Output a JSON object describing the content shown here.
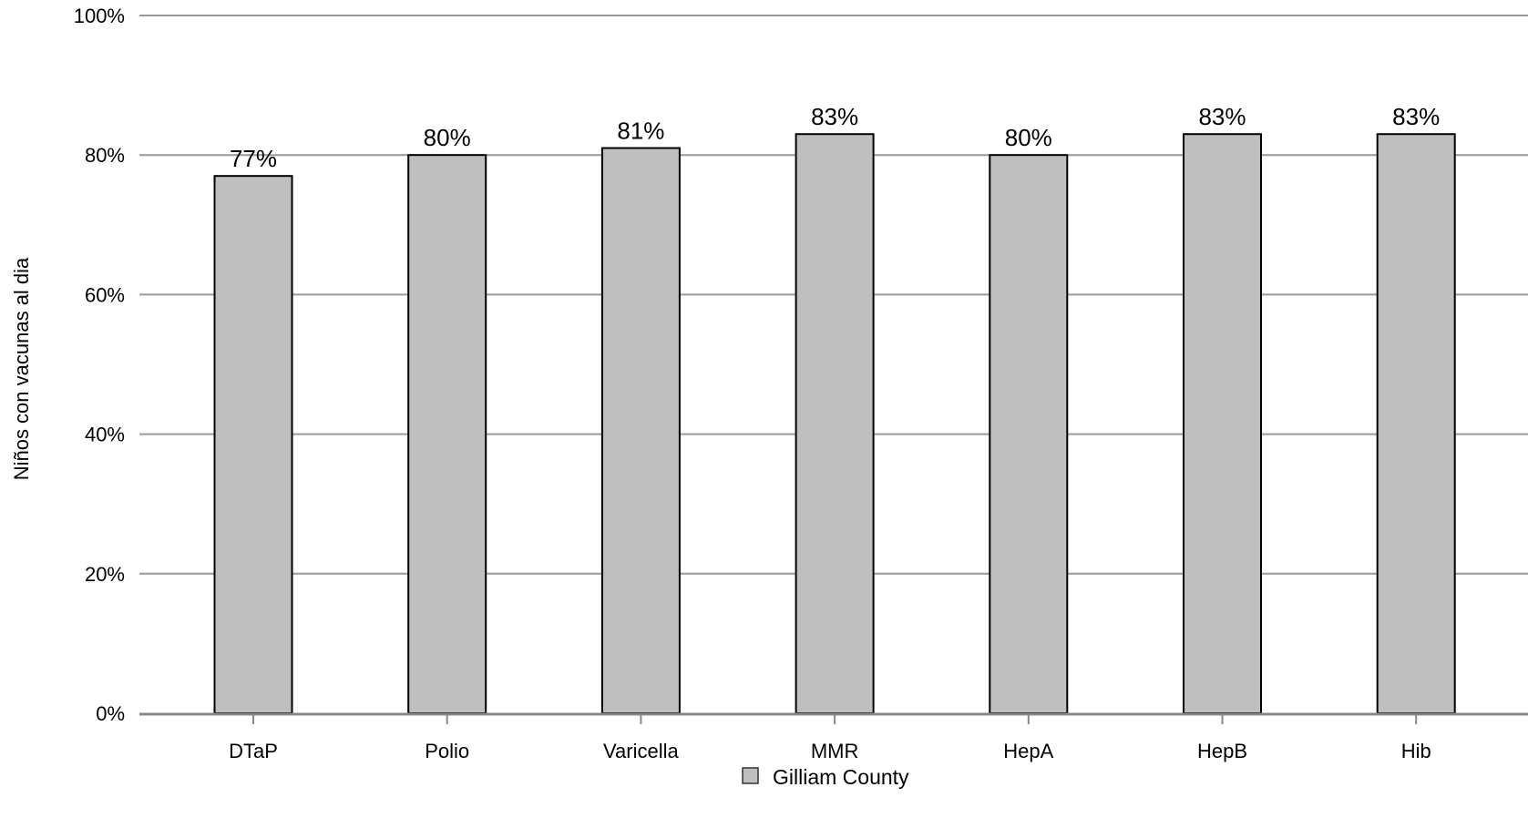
{
  "chart_data": {
    "type": "bar",
    "title": "",
    "xlabel": "",
    "ylabel": "Niños con vacunas al dia",
    "categories": [
      "DTaP",
      "Polio",
      "Varicella",
      "MMR",
      "HepA",
      "HepB",
      "Hib"
    ],
    "series": [
      {
        "name": "Gilliam County",
        "values": [
          77,
          80,
          81,
          83,
          80,
          83,
          83
        ],
        "labels": [
          "77%",
          "80%",
          "81%",
          "83%",
          "80%",
          "83%",
          "83%"
        ]
      }
    ],
    "ylim": [
      0,
      100
    ],
    "y_ticks": [
      0,
      20,
      40,
      60,
      80,
      100
    ],
    "y_tick_labels": [
      "0%",
      "20%",
      "40%",
      "60%",
      "80%",
      "100%"
    ],
    "grid": true,
    "legend_position": "bottom-center",
    "colors": {
      "bar_fill": "#bfbfbf",
      "bar_stroke": "#000000",
      "gridline": "#999999"
    }
  }
}
